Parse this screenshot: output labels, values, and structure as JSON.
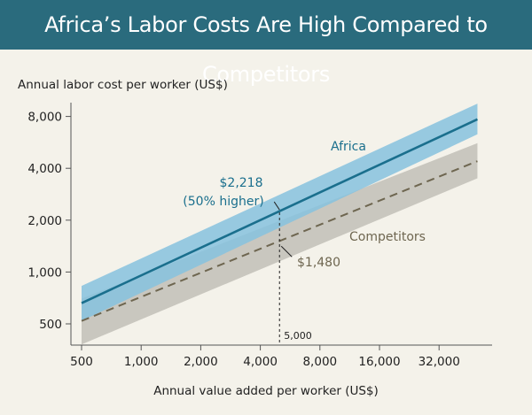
{
  "title": "Africa’s Labor Costs Are High Compared to Competitors",
  "colors": {
    "title_bg": "#2a6b7d",
    "africa_line": "#1a6f8d",
    "africa_band": "#86c2de",
    "competitors_line": "#6e6650",
    "competitors_band": "#c9c7bf",
    "annotation_teal": "#1a6f8d",
    "annotation_brown": "#6e6650"
  },
  "chart_data": {
    "type": "line",
    "title": "Africa’s Labor Costs Are High Compared to Competitors",
    "xlabel": "Annual value added per worker (US$)",
    "ylabel": "Annual labor cost per worker (US$)",
    "x_scale": "log2",
    "y_scale": "log2",
    "x_ticks": [
      500,
      1000,
      2000,
      4000,
      8000,
      16000,
      32000
    ],
    "x_tick_labels": [
      "500",
      "1,000",
      "2,000",
      "4,000",
      "8,000",
      "16,000",
      "32,000"
    ],
    "y_ticks": [
      500,
      1000,
      2000,
      4000,
      8000
    ],
    "y_tick_labels": [
      "500",
      "1,000",
      "2,000",
      "4,000",
      "8,000"
    ],
    "series": [
      {
        "name": "Africa",
        "style": "solid",
        "x": [
          500,
          50000
        ],
        "y": [
          660,
          7700
        ],
        "band_lower": [
          520,
          6300
        ],
        "band_upper": [
          830,
          9500
        ]
      },
      {
        "name": "Competitors",
        "style": "dashed",
        "x": [
          500,
          50000
        ],
        "y": [
          520,
          4400
        ],
        "band_lower": [
          380,
          3500
        ],
        "band_upper": [
          700,
          5600
        ]
      }
    ],
    "annotations": {
      "reference_x": 5000,
      "reference_x_label": "5,000",
      "africa_value_label": "$2,218",
      "africa_pct_label": "(50% higher)",
      "africa_value": 2218,
      "competitors_value_label": "$1,480",
      "competitors_value": 1480
    }
  }
}
